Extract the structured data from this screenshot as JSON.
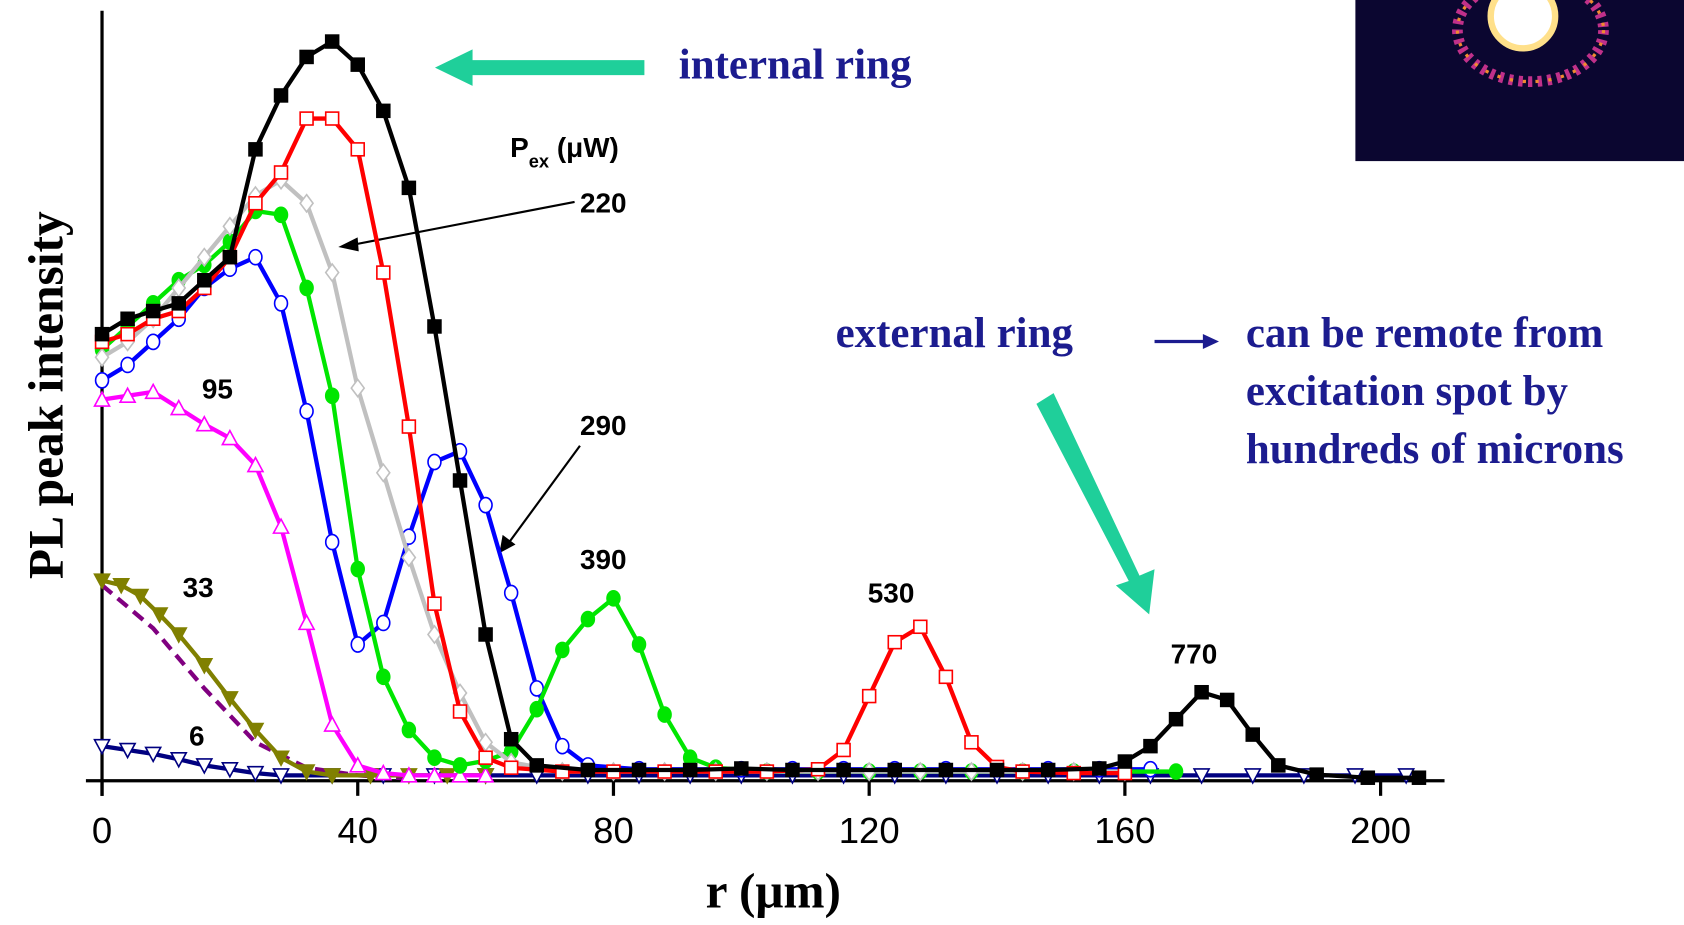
{
  "chart_data": {
    "type": "line",
    "xlabel": "r (μm)",
    "ylabel": "PL peak intensity",
    "xlim": [
      0,
      210
    ],
    "xticks": [
      0,
      40,
      80,
      120,
      160,
      200
    ],
    "ylim": [
      0,
      100
    ],
    "legend_title": {
      "main": "P",
      "sub": "ex",
      "unit": " (μW)"
    },
    "annotations": {
      "internal": "internal ring",
      "external": "external ring",
      "remote": [
        "can be remote from",
        "excitation spot by",
        "hundreds of microns"
      ]
    },
    "series": [
      {
        "name": "770",
        "color": "#000000",
        "marker": "square",
        "filled": true,
        "x": [
          0,
          4,
          8,
          12,
          16,
          20,
          24,
          28,
          32,
          36,
          40,
          44,
          48,
          52,
          56,
          60,
          64,
          68,
          76,
          84,
          92,
          100,
          108,
          116,
          124,
          132,
          140,
          148,
          156,
          160,
          164,
          168,
          172,
          176,
          180,
          184,
          190,
          198,
          206
        ],
        "values": [
          58,
          60,
          61,
          62,
          65,
          68,
          82,
          89,
          94,
          96,
          93,
          87,
          77,
          59,
          39,
          19,
          5.4,
          2,
          1.4,
          1.4,
          1.4,
          1.6,
          1.4,
          1.4,
          1.4,
          1.4,
          1.4,
          1.4,
          1.6,
          2.5,
          4.5,
          8,
          11.5,
          10.5,
          6,
          2,
          0.8,
          0.4,
          0.4
        ]
      },
      {
        "name": "530",
        "color": "#ff0000",
        "marker": "square",
        "filled": false,
        "x": [
          0,
          4,
          8,
          12,
          16,
          20,
          24,
          28,
          32,
          36,
          40,
          44,
          48,
          52,
          56,
          60,
          64,
          72,
          80,
          88,
          96,
          104,
          112,
          116,
          120,
          124,
          128,
          132,
          136,
          140,
          144,
          152,
          160
        ],
        "values": [
          57,
          58,
          60,
          61,
          64,
          68,
          75,
          79,
          86,
          86,
          82,
          66,
          46,
          23,
          9,
          3,
          1.7,
          1.2,
          1.2,
          1.2,
          1.2,
          1.2,
          1.5,
          4,
          11,
          18,
          20,
          13.5,
          5,
          1.8,
          1.2,
          1,
          1
        ]
      },
      {
        "name": "220",
        "color": "#c0c0c0",
        "marker": "diamond",
        "filled": false,
        "x": [
          0,
          4,
          8,
          12,
          16,
          20,
          24,
          28,
          32,
          36,
          40,
          44,
          48,
          52,
          56,
          60,
          64,
          72,
          80,
          88,
          96,
          104,
          112,
          120,
          128,
          136,
          144,
          152,
          160
        ],
        "values": [
          55,
          57,
          60,
          64,
          68,
          72,
          76,
          78,
          75,
          66,
          51,
          40,
          29,
          19,
          11.4,
          5,
          2.4,
          1.2,
          1.2,
          1.2,
          1.2,
          1.2,
          1.2,
          1.2,
          1.2,
          1.2,
          1.2,
          1.2,
          1.2
        ]
      },
      {
        "name": "390",
        "color": "#00e600",
        "marker": "circle",
        "filled": true,
        "x": [
          0,
          4,
          8,
          12,
          16,
          20,
          24,
          28,
          32,
          36,
          40,
          44,
          48,
          52,
          56,
          60,
          64,
          68,
          72,
          76,
          80,
          84,
          88,
          92,
          96,
          104,
          112,
          120,
          128,
          136,
          144,
          152,
          160,
          168
        ],
        "values": [
          56,
          59,
          62,
          65,
          67,
          70,
          74,
          73.5,
          64,
          50,
          27.5,
          13.5,
          6.6,
          3,
          2,
          2.6,
          3.8,
          9.3,
          17,
          21,
          23.7,
          17.7,
          8.6,
          3,
          1.7,
          1.2,
          1.2,
          1.2,
          1.2,
          1.2,
          1.2,
          1.2,
          1.2,
          1.2
        ]
      },
      {
        "name": "290",
        "color": "#0000ff",
        "marker": "circle",
        "filled": false,
        "x": [
          0,
          4,
          8,
          12,
          16,
          20,
          24,
          28,
          32,
          36,
          40,
          44,
          48,
          52,
          56,
          60,
          64,
          68,
          72,
          76,
          84,
          92,
          100,
          108,
          116,
          124,
          132,
          140,
          148,
          156,
          164
        ],
        "values": [
          52,
          54,
          57,
          60,
          64,
          66.5,
          68,
          62,
          48,
          31,
          17.7,
          20.5,
          31.7,
          41.4,
          42.8,
          35.8,
          24.4,
          12,
          4.5,
          2,
          1.5,
          1.5,
          1.5,
          1.5,
          1.5,
          1.5,
          1.5,
          1.5,
          1.5,
          1.5,
          1.5
        ]
      },
      {
        "name": "95",
        "color": "#ff00ff",
        "marker": "triangle-up",
        "filled": false,
        "x": [
          0,
          4,
          8,
          12,
          16,
          20,
          24,
          28,
          32,
          36,
          40,
          44,
          48,
          52,
          56,
          60
        ],
        "values": [
          49.5,
          50,
          50.5,
          48.4,
          46.3,
          44.5,
          41,
          33,
          20.5,
          7.3,
          2,
          1,
          0.7,
          0.7,
          0.7,
          0.7
        ]
      },
      {
        "name": "33",
        "color": "#808000",
        "marker": "triangle-down",
        "filled": true,
        "x": [
          0,
          3,
          6,
          9,
          12,
          16,
          20,
          24,
          28,
          32,
          36,
          42,
          48,
          54,
          60
        ],
        "values": [
          26,
          25.4,
          24,
          21.6,
          19,
          15,
          10.7,
          6.6,
          3,
          1.2,
          0.7,
          0.7,
          0.7,
          0.7,
          0.7
        ]
      },
      {
        "color": "#800080",
        "marker": "none",
        "line_style": "dashed",
        "x": [
          0,
          8,
          16,
          24,
          32,
          40,
          48
        ],
        "values": [
          25.4,
          19.8,
          12,
          5,
          1.7,
          0.7,
          0.3
        ]
      },
      {
        "name": "6",
        "color": "#000080",
        "marker": "triangle-down",
        "filled": false,
        "x": [
          0,
          4,
          8,
          12,
          16,
          20,
          24,
          28,
          36,
          44,
          52,
          60,
          68,
          76,
          84,
          92,
          100,
          108,
          116,
          124,
          132,
          140,
          148,
          156,
          164,
          172,
          180,
          188,
          196,
          204
        ],
        "values": [
          4.5,
          4,
          3.5,
          2.8,
          2,
          1.5,
          1,
          0.7,
          0.7,
          0.7,
          0.7,
          0.7,
          0.7,
          0.7,
          0.7,
          0.7,
          0.7,
          0.7,
          0.7,
          0.7,
          0.7,
          0.7,
          0.7,
          0.7,
          0.7,
          0.7,
          0.7,
          0.7,
          0.7,
          0.7
        ]
      }
    ]
  }
}
